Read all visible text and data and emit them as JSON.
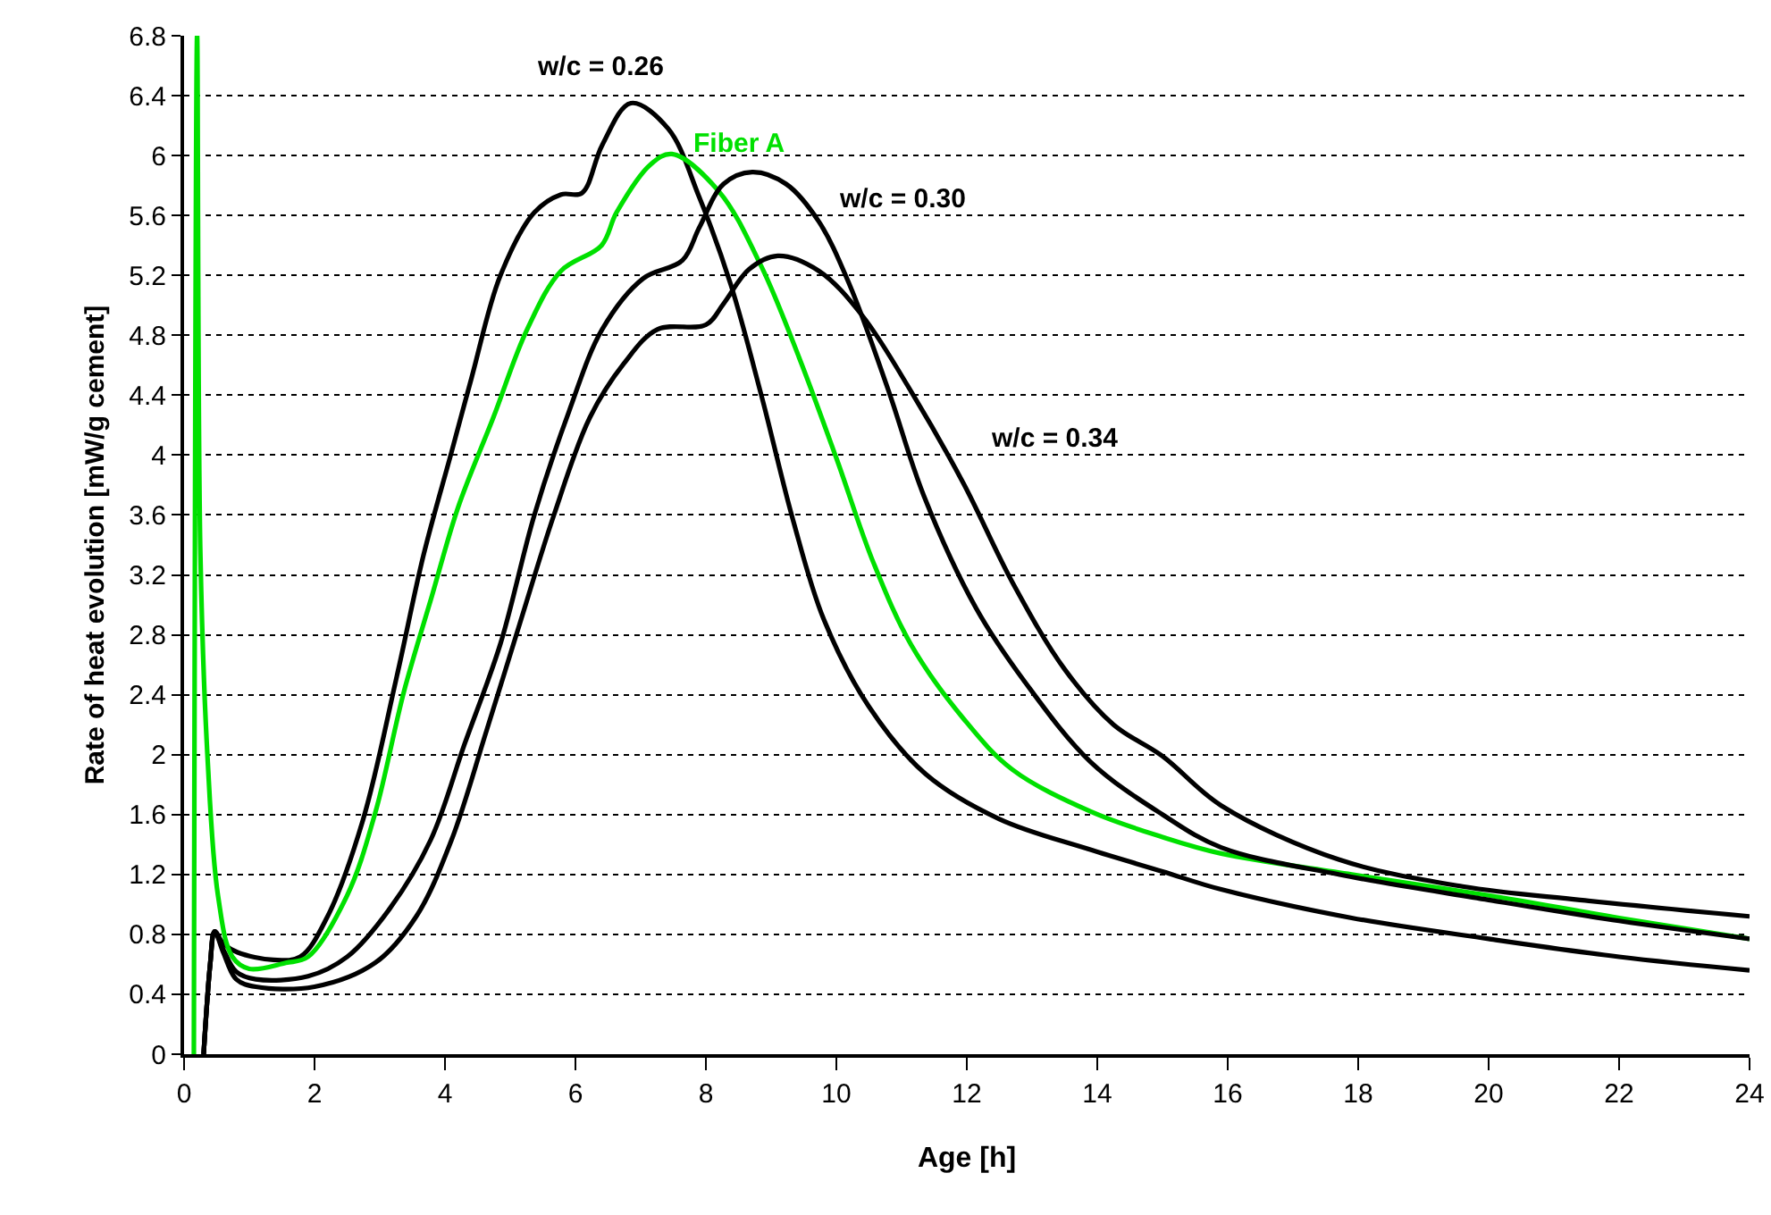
{
  "chart_data": {
    "type": "line",
    "xlabel": "Age [h]",
    "ylabel": "Rate of heat evolution [mW/g cement]",
    "xlim": [
      0,
      24
    ],
    "xticks": [
      0,
      2,
      4,
      6,
      8,
      10,
      12,
      14,
      16,
      18,
      20,
      22,
      24
    ],
    "ylim": [
      0,
      6.8
    ],
    "yticks": [
      0,
      0.4,
      0.8,
      1.2,
      1.6,
      2,
      2.4,
      2.8,
      3.2,
      3.6,
      4,
      4.4,
      4.8,
      5.2,
      5.6,
      6,
      6.4,
      6.8
    ],
    "grid": "y",
    "legend": false,
    "marker": "none",
    "line_style": "solid",
    "series": [
      {
        "name": "w/c = 0.26",
        "color": "#000000",
        "x": [
          0.3,
          0.4,
          0.47,
          0.6,
          0.82,
          1.37,
          1.78,
          2.2,
          2.74,
          3.26,
          3.67,
          4.1,
          4.41,
          4.85,
          5.37,
          5.78,
          6.1,
          6.41,
          6.85,
          7.42,
          7.9,
          8.38,
          8.85,
          9.34,
          9.81,
          10.5,
          11.37,
          12.5,
          13.86,
          15,
          15.9,
          17.9,
          20,
          22,
          24
        ],
        "values": [
          0,
          0.6,
          0.82,
          0.74,
          0.68,
          0.63,
          0.65,
          0.92,
          1.56,
          2.52,
          3.33,
          4.02,
          4.52,
          5.2,
          5.62,
          5.74,
          5.75,
          6.07,
          6.35,
          6.18,
          5.72,
          5.14,
          4.4,
          3.56,
          2.9,
          2.32,
          1.87,
          1.57,
          1.37,
          1.22,
          1.1,
          0.91,
          0.77,
          0.65,
          0.56
        ]
      },
      {
        "name": "Fiber A",
        "color": "#00e000",
        "x": [
          0.15,
          0.2,
          0.25,
          0.36,
          0.52,
          0.74,
          1.0,
          1.56,
          1.9,
          2.5,
          2.93,
          3.37,
          3.8,
          4.2,
          4.74,
          5.26,
          5.78,
          6.4,
          6.63,
          7.15,
          7.48,
          8.2,
          8.85,
          9.43,
          10.0,
          10.57,
          11.15,
          11.95,
          12.7,
          13.9,
          15,
          15.9,
          17.9,
          20,
          22,
          24
        ],
        "values": [
          0,
          6.8,
          3.34,
          1.98,
          1.06,
          0.65,
          0.57,
          0.61,
          0.65,
          1.06,
          1.61,
          2.42,
          3.06,
          3.65,
          4.25,
          4.84,
          5.23,
          5.4,
          5.62,
          5.94,
          6.01,
          5.76,
          5.26,
          4.65,
          3.98,
          3.28,
          2.73,
          2.24,
          1.9,
          1.62,
          1.45,
          1.34,
          1.2,
          1.06,
          0.91,
          0.77
        ]
      },
      {
        "name": "w/c = 0.30",
        "color": "#000000",
        "x": [
          0.3,
          0.4,
          0.47,
          0.6,
          0.8,
          1.1,
          1.9,
          2.5,
          3.15,
          3.78,
          4.3,
          4.85,
          5.37,
          5.9,
          6.41,
          7.04,
          7.64,
          7.9,
          8.27,
          8.71,
          9.23,
          9.73,
          10.2,
          10.8,
          11.34,
          12.14,
          12.9,
          13.9,
          15,
          15.9,
          17.7,
          20,
          22,
          24
        ],
        "values": [
          0,
          0.6,
          0.82,
          0.7,
          0.55,
          0.5,
          0.52,
          0.65,
          0.97,
          1.43,
          2.07,
          2.74,
          3.6,
          4.29,
          4.84,
          5.18,
          5.3,
          5.52,
          5.81,
          5.89,
          5.81,
          5.56,
          5.14,
          4.43,
          3.73,
          2.98,
          2.48,
          1.95,
          1.6,
          1.38,
          1.2,
          1.03,
          0.89,
          0.77
        ]
      },
      {
        "name": "w/c = 0.34",
        "color": "#000000",
        "x": [
          0.3,
          0.4,
          0.47,
          0.6,
          0.8,
          1.1,
          2.0,
          2.93,
          3.56,
          4.1,
          4.63,
          5.15,
          5.67,
          6.22,
          6.74,
          7.26,
          8.0,
          8.27,
          8.66,
          9.1,
          9.73,
          10.4,
          11.18,
          11.95,
          12.7,
          13.5,
          14.25,
          15,
          15.9,
          17.7,
          19.6,
          21.4,
          24
        ],
        "values": [
          0,
          0.6,
          0.82,
          0.68,
          0.5,
          0.45,
          0.45,
          0.61,
          0.92,
          1.43,
          2.15,
          2.88,
          3.6,
          4.25,
          4.61,
          4.84,
          4.87,
          5.01,
          5.24,
          5.33,
          5.23,
          4.93,
          4.4,
          3.81,
          3.15,
          2.57,
          2.2,
          1.99,
          1.66,
          1.3,
          1.12,
          1.03,
          0.92
        ]
      }
    ]
  }
}
